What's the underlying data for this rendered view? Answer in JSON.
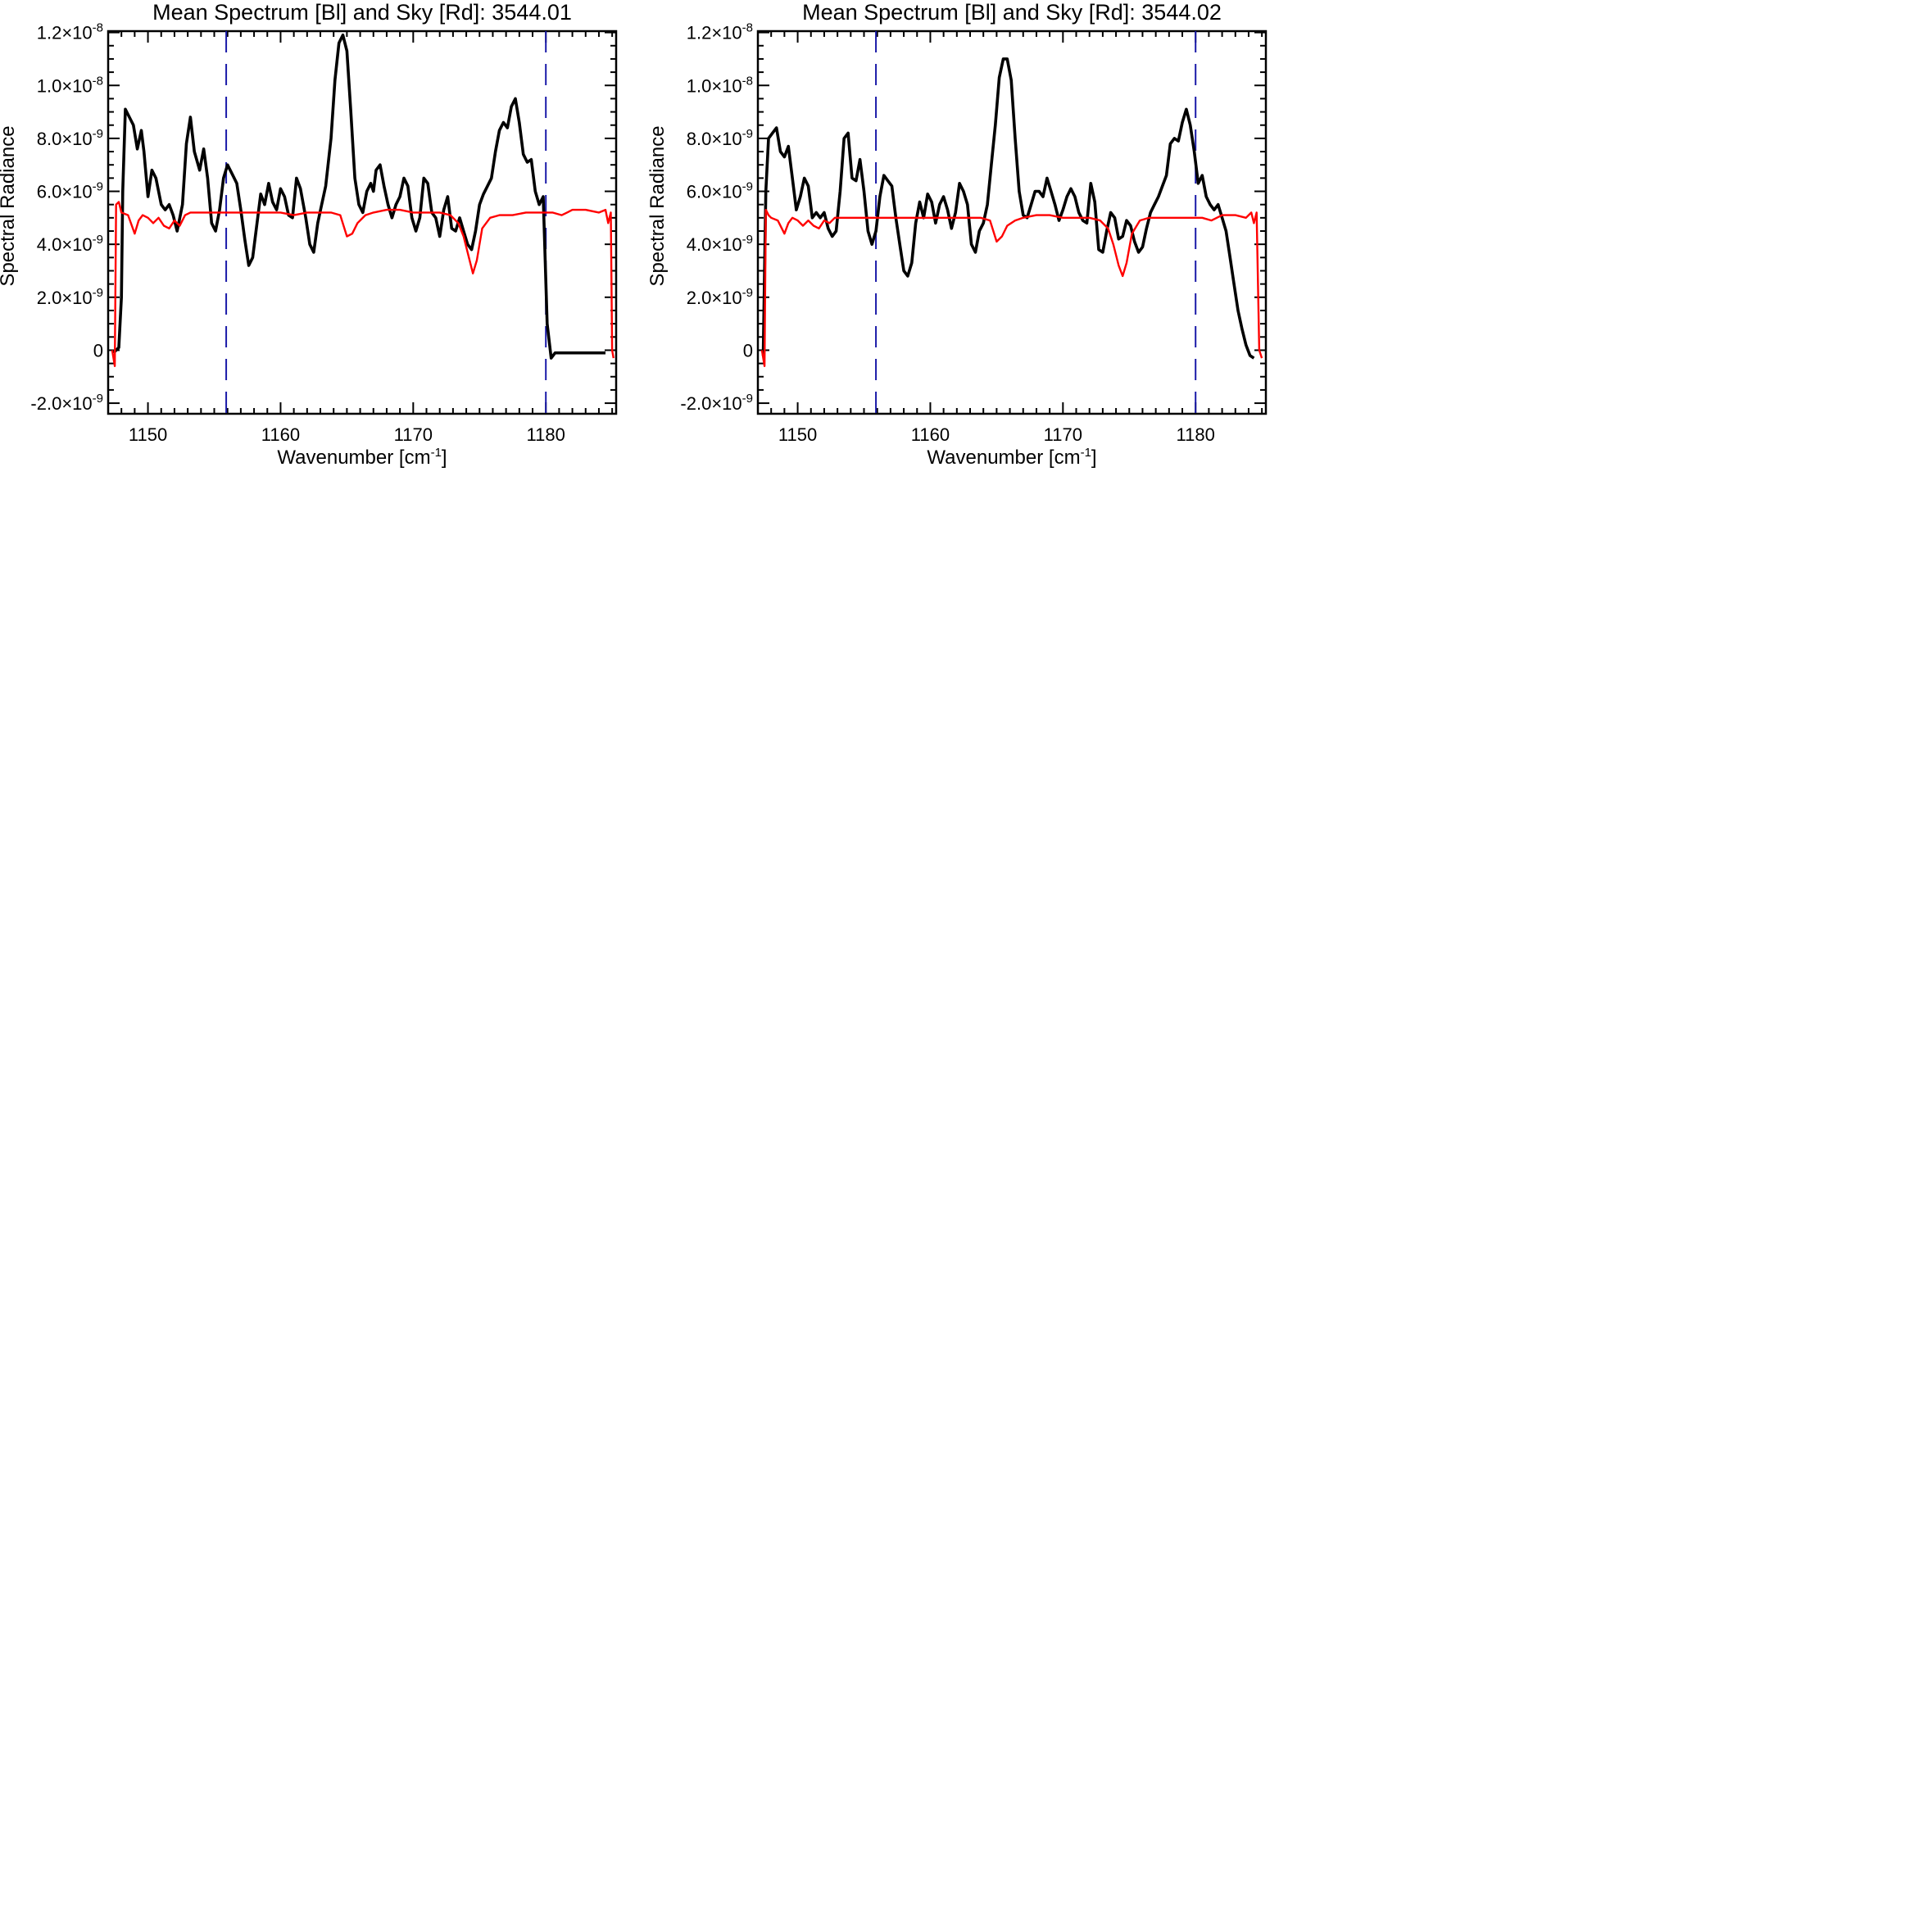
{
  "chart_data": [
    {
      "type": "line",
      "title": "Mean Spectrum [Bl] and Sky [Rd]: 3544.01",
      "xlabel": "Wavenumber [cm",
      "xlabel_sup": "-1",
      "xlabel_close": "]",
      "ylabel": "Spectral Radiance",
      "xlim": [
        1147.0,
        1185.3
      ],
      "ylim": [
        -2.4e-09,
        1.205e-08
      ],
      "x_ticks": [
        1150,
        1160,
        1170,
        1180
      ],
      "x_tick_labels": [
        "1150",
        "1160",
        "1170",
        "1180"
      ],
      "y_ticks": [
        {
          "value": 1.2e-08,
          "base": "1.2×10",
          "exp": "-8"
        },
        {
          "value": 1e-08,
          "base": "1.0×10",
          "exp": "-8"
        },
        {
          "value": 8e-09,
          "base": "8.0×10",
          "exp": "-9"
        },
        {
          "value": 6e-09,
          "base": "6.0×10",
          "exp": "-9"
        },
        {
          "value": 4e-09,
          "base": "4.0×10",
          "exp": "-9"
        },
        {
          "value": 2e-09,
          "base": "2.0×10",
          "exp": "-9"
        },
        {
          "value": 0,
          "base": "0",
          "exp": ""
        },
        {
          "value": -2e-09,
          "base": "-2.0×10",
          "exp": "-9"
        }
      ],
      "vlines": [
        1155.9,
        1180.0
      ],
      "series": [
        {
          "color": "#000000",
          "x": [
            1147.4,
            1147.8,
            1148.0,
            1148.1,
            1148.3,
            1148.6,
            1148.9,
            1149.2,
            1149.5,
            1149.7,
            1150.0,
            1150.3,
            1150.6,
            1151.0,
            1151.3,
            1151.6,
            1151.9,
            1152.2,
            1152.6,
            1152.9,
            1153.2,
            1153.5,
            1153.9,
            1154.2,
            1154.5,
            1154.8,
            1155.1,
            1155.4,
            1155.7,
            1156.0,
            1156.4,
            1156.7,
            1157.0,
            1157.3,
            1157.6,
            1157.9,
            1158.2,
            1158.5,
            1158.8,
            1159.1,
            1159.4,
            1159.7,
            1160.0,
            1160.3,
            1160.6,
            1160.9,
            1161.2,
            1161.5,
            1161.9,
            1162.2,
            1162.5,
            1162.8,
            1163.1,
            1163.4,
            1163.8,
            1164.1,
            1164.4,
            1164.7,
            1165.0,
            1165.3,
            1165.6,
            1165.9,
            1166.2,
            1166.5,
            1166.8,
            1167.0,
            1167.2,
            1167.5,
            1167.8,
            1168.1,
            1168.4,
            1168.7,
            1169.0,
            1169.3,
            1169.6,
            1169.9,
            1170.2,
            1170.5,
            1170.8,
            1171.1,
            1171.4,
            1171.7,
            1172.0,
            1172.3,
            1172.6,
            1172.9,
            1173.2,
            1173.5,
            1173.8,
            1174.1,
            1174.4,
            1174.7,
            1175.0,
            1175.3,
            1175.6,
            1175.9,
            1176.2,
            1176.5,
            1176.8,
            1177.1,
            1177.4,
            1177.7,
            1178.0,
            1178.3,
            1178.6,
            1178.9,
            1179.2,
            1179.5,
            1179.8,
            1180.1,
            1180.4,
            1180.7,
            1181.0,
            1181.3,
            1181.6,
            1181.9,
            1182.2,
            1182.5,
            1182.8,
            1183.1,
            1183.3,
            1183.6,
            1184.0,
            1184.5
          ],
          "y": [
            -1e-10,
            1e-10,
            2e-09,
            6e-09,
            9.1e-09,
            8.8e-09,
            8.5e-09,
            7.6e-09,
            8.3e-09,
            7.5e-09,
            5.8e-09,
            6.8e-09,
            6.5e-09,
            5.5e-09,
            5.3e-09,
            5.5e-09,
            5.1e-09,
            4.5e-09,
            5.5e-09,
            7.8e-09,
            8.8e-09,
            7.5e-09,
            6.8e-09,
            7.6e-09,
            6.5e-09,
            4.8e-09,
            4.5e-09,
            5.3e-09,
            6.5e-09,
            7e-09,
            6.6e-09,
            6.3e-09,
            5.3e-09,
            4.2e-09,
            3.2e-09,
            3.5e-09,
            4.7e-09,
            5.9e-09,
            5.5e-09,
            6.3e-09,
            5.6e-09,
            5.3e-09,
            6.1e-09,
            5.8e-09,
            5.1e-09,
            5e-09,
            6.5e-09,
            6.1e-09,
            5e-09,
            4e-09,
            3.7e-09,
            4.8e-09,
            5.5e-09,
            6.2e-09,
            8e-09,
            1.02e-08,
            1.16e-08,
            1.19e-08,
            1.13e-08,
            9e-09,
            6.5e-09,
            5.5e-09,
            5.2e-09,
            6e-09,
            6.3e-09,
            6e-09,
            6.8e-09,
            7e-09,
            6.2e-09,
            5.5e-09,
            5e-09,
            5.5e-09,
            5.8e-09,
            6.5e-09,
            6.2e-09,
            5e-09,
            4.5e-09,
            5e-09,
            6.5e-09,
            6.3e-09,
            5.2e-09,
            5e-09,
            4.3e-09,
            5.3e-09,
            5.8e-09,
            4.6e-09,
            4.5e-09,
            5e-09,
            4.5e-09,
            4e-09,
            3.8e-09,
            4.5e-09,
            5.5e-09,
            5.9e-09,
            6.2e-09,
            6.5e-09,
            7.5e-09,
            8.3e-09,
            8.6e-09,
            8.4e-09,
            9.2e-09,
            9.5e-09,
            8.6e-09,
            7.4e-09,
            7.1e-09,
            7.2e-09,
            6e-09,
            5.5e-09,
            5.8e-09,
            1e-09,
            -3e-10,
            -1e-10,
            -1e-10,
            -1e-10,
            -1e-10,
            -1e-10,
            -1e-10,
            -1e-10,
            -1e-10,
            -1e-10,
            -1e-10,
            -1e-10,
            -1e-10,
            -1e-10
          ]
        },
        {
          "color": "#ff0000",
          "x": [
            1147.3,
            1147.5,
            1147.6,
            1147.8,
            1148.0,
            1148.5,
            1149.0,
            1149.3,
            1149.6,
            1150.0,
            1150.4,
            1150.8,
            1151.2,
            1151.6,
            1152.0,
            1152.4,
            1152.8,
            1153.2,
            1154.0,
            1155.0,
            1156.0,
            1157.0,
            1158.0,
            1159.0,
            1160.0,
            1161.0,
            1162.0,
            1163.0,
            1163.8,
            1164.5,
            1165.0,
            1165.4,
            1165.8,
            1166.4,
            1167.0,
            1168.0,
            1169.0,
            1170.0,
            1171.0,
            1172.0,
            1172.8,
            1173.4,
            1173.8,
            1174.2,
            1174.5,
            1174.8,
            1175.2,
            1175.8,
            1176.5,
            1177.5,
            1178.5,
            1179.5,
            1180.5,
            1181.2,
            1181.6,
            1182.0,
            1183.0,
            1184.0,
            1184.5,
            1184.7,
            1184.9,
            1185.0,
            1185.1
          ],
          "y": [
            0.0,
            -6e-10,
            5.5e-09,
            5.6e-09,
            5.2e-09,
            5.1e-09,
            4.4e-09,
            4.9e-09,
            5.1e-09,
            5e-09,
            4.8e-09,
            5e-09,
            4.7e-09,
            4.6e-09,
            4.9e-09,
            4.7e-09,
            5.1e-09,
            5.2e-09,
            5.2e-09,
            5.2e-09,
            5.2e-09,
            5.2e-09,
            5.2e-09,
            5.2e-09,
            5.2e-09,
            5.1e-09,
            5.2e-09,
            5.2e-09,
            5.2e-09,
            5.1e-09,
            4.3e-09,
            4.4e-09,
            4.8e-09,
            5.1e-09,
            5.2e-09,
            5.3e-09,
            5.3e-09,
            5.2e-09,
            5.2e-09,
            5.2e-09,
            5.1e-09,
            4.8e-09,
            4.3e-09,
            3.5e-09,
            2.9e-09,
            3.4e-09,
            4.6e-09,
            5e-09,
            5.1e-09,
            5.1e-09,
            5.2e-09,
            5.2e-09,
            5.2e-09,
            5.1e-09,
            5.2e-09,
            5.3e-09,
            5.3e-09,
            5.2e-09,
            5.3e-09,
            4.8e-09,
            5.2e-09,
            0.0,
            -3e-10
          ]
        }
      ]
    },
    {
      "type": "line",
      "title": "Mean Spectrum [Bl] and Sky [Rd]: 3544.02",
      "xlabel": "Wavenumber [cm",
      "xlabel_sup": "-1",
      "xlabel_close": "]",
      "ylabel": "Spectral Radiance",
      "xlim": [
        1147.0,
        1185.3
      ],
      "ylim": [
        -2.4e-09,
        1.205e-08
      ],
      "x_ticks": [
        1150,
        1160,
        1170,
        1180
      ],
      "x_tick_labels": [
        "1150",
        "1160",
        "1170",
        "1180"
      ],
      "y_ticks": [
        {
          "value": 1.2e-08,
          "base": "1.2×10",
          "exp": "-8"
        },
        {
          "value": 1e-08,
          "base": "1.0×10",
          "exp": "-8"
        },
        {
          "value": 8e-09,
          "base": "8.0×10",
          "exp": "-9"
        },
        {
          "value": 6e-09,
          "base": "6.0×10",
          "exp": "-9"
        },
        {
          "value": 4e-09,
          "base": "4.0×10",
          "exp": "-9"
        },
        {
          "value": 2e-09,
          "base": "2.0×10",
          "exp": "-9"
        },
        {
          "value": 0,
          "base": "0",
          "exp": ""
        },
        {
          "value": -2e-09,
          "base": "-2.0×10",
          "exp": "-9"
        }
      ],
      "vlines": [
        1155.9,
        1180.0
      ],
      "series": [
        {
          "color": "#000000",
          "x": [
            1147.4,
            1147.6,
            1147.8,
            1148.1,
            1148.4,
            1148.7,
            1149.0,
            1149.3,
            1149.6,
            1149.9,
            1150.2,
            1150.5,
            1150.8,
            1151.1,
            1151.4,
            1151.7,
            1152.0,
            1152.3,
            1152.6,
            1152.9,
            1153.2,
            1153.5,
            1153.8,
            1154.1,
            1154.4,
            1154.7,
            1155.0,
            1155.3,
            1155.6,
            1155.9,
            1156.2,
            1156.5,
            1156.8,
            1157.1,
            1157.4,
            1157.7,
            1158.0,
            1158.3,
            1158.6,
            1158.9,
            1159.2,
            1159.5,
            1159.8,
            1160.1,
            1160.4,
            1160.7,
            1161.0,
            1161.3,
            1161.6,
            1161.9,
            1162.2,
            1162.5,
            1162.8,
            1163.1,
            1163.4,
            1163.7,
            1164.0,
            1164.3,
            1164.6,
            1164.9,
            1165.2,
            1165.5,
            1165.8,
            1166.1,
            1166.4,
            1166.7,
            1167.0,
            1167.3,
            1167.6,
            1167.9,
            1168.2,
            1168.5,
            1168.8,
            1169.1,
            1169.4,
            1169.7,
            1170.0,
            1170.3,
            1170.6,
            1170.9,
            1171.2,
            1171.5,
            1171.8,
            1172.1,
            1172.4,
            1172.7,
            1173.0,
            1173.3,
            1173.6,
            1173.9,
            1174.2,
            1174.5,
            1174.8,
            1175.1,
            1175.4,
            1175.7,
            1176.0,
            1176.3,
            1176.6,
            1176.9,
            1177.2,
            1177.5,
            1177.8,
            1178.1,
            1178.4,
            1178.7,
            1179.0,
            1179.3,
            1179.6,
            1179.9,
            1180.2,
            1180.5,
            1180.8,
            1181.1,
            1181.4,
            1181.7,
            1182.0,
            1182.3,
            1182.6,
            1182.9,
            1183.2,
            1183.5,
            1183.8,
            1184.1,
            1184.4
          ],
          "y": [
            -2e-10,
            6e-09,
            8e-09,
            8.2e-09,
            8.4e-09,
            7.5e-09,
            7.3e-09,
            7.7e-09,
            6.5e-09,
            5.3e-09,
            5.8e-09,
            6.5e-09,
            6.2e-09,
            5e-09,
            5.2e-09,
            5e-09,
            5.2e-09,
            4.6e-09,
            4.3e-09,
            4.5e-09,
            6e-09,
            8e-09,
            8.2e-09,
            6.5e-09,
            6.4e-09,
            7.2e-09,
            6e-09,
            4.5e-09,
            4e-09,
            4.5e-09,
            5.8e-09,
            6.6e-09,
            6.4e-09,
            6.2e-09,
            5e-09,
            4e-09,
            3e-09,
            2.8e-09,
            3.3e-09,
            4.8e-09,
            5.6e-09,
            5e-09,
            5.9e-09,
            5.6e-09,
            4.8e-09,
            5.5e-09,
            5.8e-09,
            5.3e-09,
            4.6e-09,
            5.2e-09,
            6.3e-09,
            6e-09,
            5.5e-09,
            4e-09,
            3.7e-09,
            4.5e-09,
            4.8e-09,
            5.5e-09,
            7e-09,
            8.5e-09,
            1.03e-08,
            1.1e-08,
            1.1e-08,
            1.02e-08,
            8e-09,
            6e-09,
            5.1e-09,
            5e-09,
            5.5e-09,
            6e-09,
            6e-09,
            5.8e-09,
            6.5e-09,
            6e-09,
            5.5e-09,
            4.9e-09,
            5.3e-09,
            5.8e-09,
            6.1e-09,
            5.8e-09,
            5.2e-09,
            4.9e-09,
            4.8e-09,
            6.3e-09,
            5.6e-09,
            3.8e-09,
            3.7e-09,
            4.5e-09,
            5.2e-09,
            5e-09,
            4.2e-09,
            4.3e-09,
            4.9e-09,
            4.7e-09,
            4.1e-09,
            3.7e-09,
            3.9e-09,
            4.6e-09,
            5.2e-09,
            5.5e-09,
            5.8e-09,
            6.2e-09,
            6.6e-09,
            7.8e-09,
            8e-09,
            7.9e-09,
            8.6e-09,
            9.1e-09,
            8.5e-09,
            7.5e-09,
            6.3e-09,
            6.6e-09,
            5.8e-09,
            5.5e-09,
            5.3e-09,
            5.5e-09,
            5e-09,
            4.5e-09,
            3.5e-09,
            2.5e-09,
            1.5e-09,
            8e-10,
            2e-10,
            -2e-10,
            -3e-10
          ]
        },
        {
          "color": "#ff0000",
          "x": [
            1147.3,
            1147.5,
            1147.6,
            1147.8,
            1148.0,
            1148.5,
            1149.0,
            1149.3,
            1149.6,
            1150.0,
            1150.4,
            1150.8,
            1151.2,
            1151.6,
            1152.0,
            1152.4,
            1152.8,
            1153.2,
            1154.0,
            1155.0,
            1156.0,
            1157.0,
            1158.0,
            1159.0,
            1160.0,
            1161.0,
            1162.0,
            1163.0,
            1163.8,
            1164.5,
            1165.0,
            1165.4,
            1165.8,
            1166.4,
            1167.0,
            1168.0,
            1169.0,
            1170.0,
            1171.0,
            1172.0,
            1172.8,
            1173.4,
            1173.8,
            1174.2,
            1174.5,
            1174.8,
            1175.2,
            1175.8,
            1176.5,
            1177.5,
            1178.5,
            1179.5,
            1180.5,
            1181.2,
            1181.6,
            1182.0,
            1183.0,
            1183.8,
            1184.2,
            1184.4,
            1184.6,
            1184.8,
            1185.0
          ],
          "y": [
            0.0,
            -6e-10,
            5.3e-09,
            5.1e-09,
            5e-09,
            4.9e-09,
            4.4e-09,
            4.8e-09,
            5e-09,
            4.9e-09,
            4.7e-09,
            4.9e-09,
            4.7e-09,
            4.6e-09,
            4.9e-09,
            4.8e-09,
            5e-09,
            5e-09,
            5e-09,
            5e-09,
            5e-09,
            5e-09,
            5e-09,
            5e-09,
            5e-09,
            5e-09,
            5e-09,
            5e-09,
            5e-09,
            4.9e-09,
            4.1e-09,
            4.3e-09,
            4.7e-09,
            4.9e-09,
            5e-09,
            5.1e-09,
            5.1e-09,
            5e-09,
            5e-09,
            5e-09,
            4.9e-09,
            4.6e-09,
            4e-09,
            3.2e-09,
            2.8e-09,
            3.3e-09,
            4.4e-09,
            4.9e-09,
            5e-09,
            5e-09,
            5e-09,
            5e-09,
            5e-09,
            4.9e-09,
            5e-09,
            5.1e-09,
            5.1e-09,
            5e-09,
            5.2e-09,
            4.8e-09,
            5.2e-09,
            0.0,
            -3e-10
          ]
        }
      ]
    }
  ]
}
